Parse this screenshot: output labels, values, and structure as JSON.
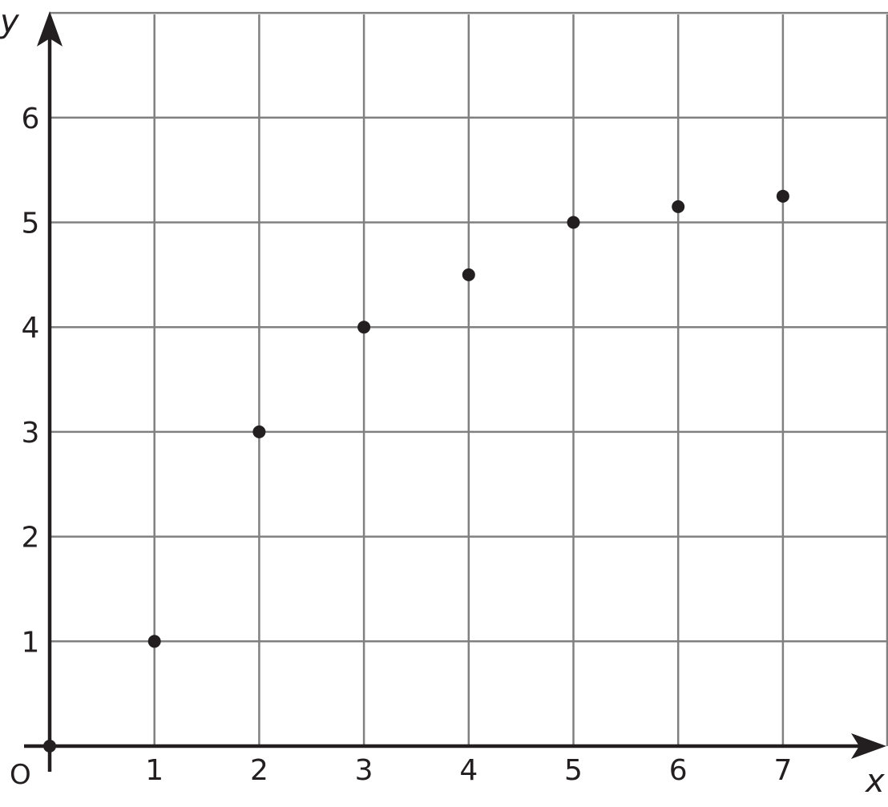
{
  "chart_data": {
    "type": "scatter",
    "title": "",
    "xlabel": "x",
    "ylabel": "y",
    "origin_label": "O",
    "xlim": [
      0,
      8
    ],
    "ylim": [
      0,
      7
    ],
    "grid": true,
    "x_ticks": [
      "1",
      "2",
      "3",
      "4",
      "5",
      "6",
      "7"
    ],
    "y_ticks": [
      "1",
      "2",
      "3",
      "4",
      "5",
      "6"
    ],
    "points": [
      {
        "x": 0,
        "y": 0
      },
      {
        "x": 1,
        "y": 1
      },
      {
        "x": 2,
        "y": 3
      },
      {
        "x": 3,
        "y": 4
      },
      {
        "x": 4,
        "y": 4.5
      },
      {
        "x": 5,
        "y": 5
      },
      {
        "x": 6,
        "y": 5.15
      },
      {
        "x": 7,
        "y": 5.25
      }
    ],
    "colors": {
      "grid": "#808080",
      "axis": "#231f20",
      "point": "#231f20"
    }
  }
}
